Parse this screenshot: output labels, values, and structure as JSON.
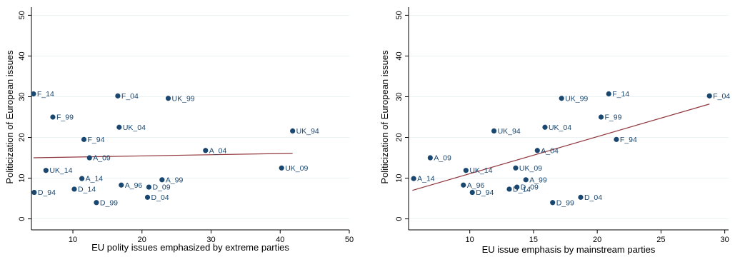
{
  "chart_data": [
    {
      "type": "scatter",
      "xlabel": "EU polity issues emphasized by extreme parties",
      "ylabel": "Politicization of European issues",
      "xlim": [
        4,
        50
      ],
      "ylim": [
        -2,
        52
      ],
      "xticks": [
        10,
        20,
        30,
        40,
        50
      ],
      "yticks": [
        0,
        10,
        20,
        30,
        40,
        50
      ],
      "grid": true,
      "points": [
        {
          "label": "F_14",
          "x": 4.3,
          "y": 30.7
        },
        {
          "label": "F_04",
          "x": 16.5,
          "y": 30.2
        },
        {
          "label": "UK_99",
          "x": 23.8,
          "y": 29.6
        },
        {
          "label": "F_99",
          "x": 7.1,
          "y": 25.0
        },
        {
          "label": "UK_04",
          "x": 16.7,
          "y": 22.5
        },
        {
          "label": "UK_94",
          "x": 41.8,
          "y": 21.6
        },
        {
          "label": "F_94",
          "x": 11.6,
          "y": 19.5
        },
        {
          "label": "A_04",
          "x": 29.2,
          "y": 16.8
        },
        {
          "label": "A_09",
          "x": 12.4,
          "y": 15.0
        },
        {
          "label": "UK_09",
          "x": 40.2,
          "y": 12.5
        },
        {
          "label": "UK_14",
          "x": 6.1,
          "y": 11.9
        },
        {
          "label": "A_14",
          "x": 11.3,
          "y": 9.9
        },
        {
          "label": "A_99",
          "x": 22.9,
          "y": 9.6
        },
        {
          "label": "A_96",
          "x": 17.0,
          "y": 8.3
        },
        {
          "label": "D_09",
          "x": 21.0,
          "y": 7.8
        },
        {
          "label": "D_14",
          "x": 10.2,
          "y": 7.3
        },
        {
          "label": "D_94",
          "x": 4.4,
          "y": 6.5
        },
        {
          "label": "D_04",
          "x": 20.8,
          "y": 5.3
        },
        {
          "label": "D_99",
          "x": 13.4,
          "y": 4.0
        }
      ],
      "fit_line": {
        "x": [
          4.3,
          41.8
        ],
        "y": [
          15.0,
          16.1
        ]
      }
    },
    {
      "type": "scatter",
      "xlabel": "EU issue emphasis by mainstream parties",
      "ylabel": "Politicization of European issues",
      "xlim": [
        5.2,
        30.3
      ],
      "ylim": [
        -2,
        52
      ],
      "xticks": [
        10,
        15,
        20,
        25,
        30
      ],
      "yticks": [
        0,
        10,
        20,
        30,
        40,
        50
      ],
      "grid": true,
      "points": [
        {
          "label": "F_04",
          "x": 28.8,
          "y": 30.2
        },
        {
          "label": "F_14",
          "x": 20.9,
          "y": 30.7
        },
        {
          "label": "UK_99",
          "x": 17.2,
          "y": 29.6
        },
        {
          "label": "F_99",
          "x": 20.3,
          "y": 25.0
        },
        {
          "label": "UK_04",
          "x": 15.9,
          "y": 22.5
        },
        {
          "label": "UK_94",
          "x": 11.9,
          "y": 21.6
        },
        {
          "label": "F_94",
          "x": 21.5,
          "y": 19.5
        },
        {
          "label": "A_04",
          "x": 15.3,
          "y": 16.8
        },
        {
          "label": "A_09",
          "x": 6.9,
          "y": 15.0
        },
        {
          "label": "UK_09",
          "x": 13.6,
          "y": 12.5
        },
        {
          "label": "UK_14",
          "x": 9.7,
          "y": 11.9
        },
        {
          "label": "A_14",
          "x": 5.6,
          "y": 9.9
        },
        {
          "label": "A_99",
          "x": 14.4,
          "y": 9.6
        },
        {
          "label": "A_96",
          "x": 9.5,
          "y": 8.3
        },
        {
          "label": "D_09",
          "x": 13.7,
          "y": 7.8
        },
        {
          "label": "D_14",
          "x": 13.1,
          "y": 7.3
        },
        {
          "label": "D_94",
          "x": 10.2,
          "y": 6.5
        },
        {
          "label": "D_04",
          "x": 18.7,
          "y": 5.3
        },
        {
          "label": "D_99",
          "x": 16.5,
          "y": 4.0
        }
      ],
      "fit_line": {
        "x": [
          5.5,
          28.8
        ],
        "y": [
          7.0,
          28.2
        ]
      }
    }
  ]
}
